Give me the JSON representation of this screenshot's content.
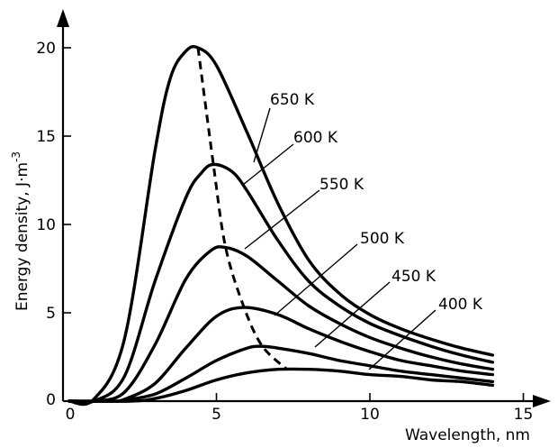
{
  "chart_data": {
    "type": "line",
    "xlabel": "Wavelength, nm",
    "ylabel": "Energy density, J·m",
    "ylabel_sup": "-3",
    "xlim": [
      0,
      15
    ],
    "ylim": [
      0,
      20
    ],
    "x_ticks": [
      "0",
      "5",
      "10",
      "15"
    ],
    "y_ticks": [
      "0",
      "5",
      "10",
      "15",
      "20"
    ],
    "grid": false,
    "legend": "none",
    "series": [
      {
        "name": "650 K",
        "x": [
          1,
          2,
          3,
          3.5,
          4,
          4.4,
          5,
          6,
          7,
          8,
          9,
          10,
          11,
          12,
          13,
          14
        ],
        "values": [
          0.1,
          3.5,
          14.2,
          18.3,
          19.8,
          20.0,
          19.0,
          15.2,
          11.2,
          8.0,
          6.1,
          4.9,
          4.1,
          3.5,
          3.0,
          2.6
        ]
      },
      {
        "name": "600 K",
        "x": [
          1,
          2,
          3,
          4,
          4.5,
          4.9,
          5.5,
          6,
          7,
          8,
          9,
          10,
          11,
          12,
          13,
          14
        ],
        "values": [
          0.0,
          1.4,
          6.8,
          11.5,
          12.9,
          13.4,
          13.0,
          11.9,
          9.1,
          6.8,
          5.4,
          4.4,
          3.7,
          3.1,
          2.6,
          2.2
        ]
      },
      {
        "name": "550 K",
        "x": [
          1,
          2,
          3,
          4,
          4.8,
          5.3,
          6,
          7,
          8,
          9,
          10,
          11,
          12,
          13,
          14
        ],
        "values": [
          0.0,
          0.5,
          3.2,
          6.9,
          8.5,
          8.7,
          8.2,
          6.8,
          5.4,
          4.4,
          3.6,
          3.0,
          2.5,
          2.1,
          1.8
        ]
      },
      {
        "name": "500 K",
        "x": [
          1.5,
          2,
          3,
          4,
          5,
          5.9,
          7,
          8,
          9,
          10,
          11,
          12,
          13,
          14
        ],
        "values": [
          0.0,
          0.1,
          1.0,
          3.0,
          4.8,
          5.3,
          4.9,
          4.1,
          3.4,
          2.8,
          2.3,
          2.0,
          1.7,
          1.5
        ]
      },
      {
        "name": "450 K",
        "x": [
          1.8,
          2,
          3,
          4,
          5,
          6,
          6.5,
          7,
          8,
          9,
          10,
          11,
          12,
          13,
          14
        ],
        "values": [
          0.0,
          0.05,
          0.4,
          1.3,
          2.3,
          3.0,
          3.1,
          3.0,
          2.7,
          2.3,
          2.0,
          1.7,
          1.5,
          1.3,
          1.1
        ]
      },
      {
        "name": "400 K",
        "x": [
          2.2,
          3,
          4,
          5,
          6,
          7,
          8,
          9,
          10,
          11,
          12,
          13,
          14
        ],
        "values": [
          0.0,
          0.15,
          0.6,
          1.2,
          1.6,
          1.8,
          1.8,
          1.7,
          1.5,
          1.4,
          1.2,
          1.1,
          0.9
        ]
      }
    ],
    "peak_locus": {
      "x": [
        4.4,
        4.9,
        5.3,
        5.9,
        6.5,
        7.3
      ],
      "values": [
        20.0,
        13.4,
        8.7,
        5.3,
        3.1,
        1.8
      ]
    },
    "curve_labels": [
      "650 K",
      "600 K",
      "550 K",
      "500 K",
      "450 K",
      "400 K"
    ]
  }
}
